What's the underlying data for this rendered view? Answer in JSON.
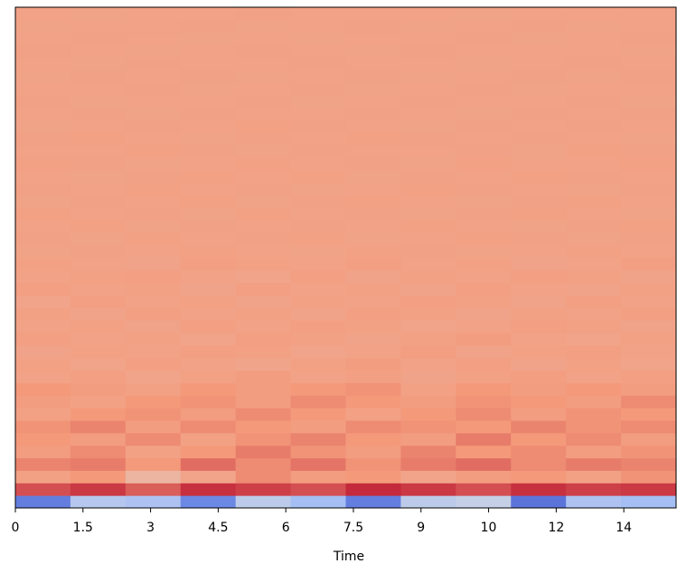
{
  "chart_data": {
    "type": "heatmap",
    "xlabel": "Time",
    "colormap": "coolwarm",
    "clim": [
      -200,
      200
    ],
    "xlim": [
      0,
      14.66
    ],
    "xticks": [
      0,
      1.5,
      3,
      4.5,
      6,
      7.5,
      9,
      {
        "value": 10.5,
        "label": "10"
      },
      12,
      {
        "value": 13.5,
        "label": "14"
      }
    ],
    "z": [
      [
        -150,
        -50,
        -60,
        -140,
        -40,
        -70,
        -150,
        -40,
        -30,
        -160,
        -60,
        -70
      ],
      [
        150,
        165,
        140,
        170,
        160,
        150,
        175,
        165,
        150,
        170,
        160,
        165
      ],
      [
        90,
        100,
        60,
        85,
        110,
        95,
        100,
        85,
        95,
        100,
        90,
        105
      ],
      [
        115,
        120,
        100,
        130,
        110,
        125,
        105,
        120,
        130,
        110,
        120,
        115
      ],
      [
        95,
        110,
        90,
        100,
        120,
        105,
        95,
        115,
        100,
        110,
        95,
        105
      ],
      [
        100,
        95,
        110,
        90,
        105,
        115,
        100,
        95,
        120,
        100,
        110,
        95
      ],
      [
        105,
        115,
        95,
        110,
        100,
        95,
        110,
        105,
        100,
        115,
        105,
        110
      ],
      [
        90,
        100,
        105,
        95,
        110,
        100,
        90,
        100,
        110,
        95,
        105,
        100
      ],
      [
        95,
        90,
        100,
        105,
        95,
        110,
        100,
        95,
        105,
        100,
        95,
        110
      ],
      [
        100,
        95,
        90,
        100,
        95,
        100,
        105,
        90,
        100,
        95,
        100,
        95
      ],
      [
        88,
        92,
        85,
        90,
        95,
        88,
        92,
        86,
        90,
        94,
        88,
        92
      ],
      [
        90,
        85,
        92,
        88,
        84,
        90,
        95,
        88,
        92,
        86,
        90,
        85
      ],
      [
        86,
        90,
        88,
        92,
        90,
        85,
        88,
        94,
        86,
        90,
        92,
        88
      ],
      [
        92,
        88,
        90,
        85,
        92,
        90,
        86,
        90,
        95,
        88,
        85,
        90
      ],
      [
        88,
        90,
        86,
        92,
        88,
        92,
        90,
        85,
        88,
        92,
        90,
        86
      ],
      [
        90,
        86,
        92,
        88,
        90,
        86,
        92,
        90,
        86,
        90,
        88,
        92
      ],
      [
        85,
        92,
        88,
        90,
        86,
        90,
        88,
        92,
        90,
        86,
        92,
        88
      ],
      [
        92,
        88,
        90,
        86,
        92,
        88,
        90,
        86,
        92,
        88,
        86,
        90
      ],
      [
        88,
        90,
        92,
        88,
        85,
        92,
        86,
        90,
        88,
        92,
        90,
        86
      ],
      [
        90,
        88,
        86,
        92,
        90,
        88,
        92,
        88,
        90,
        86,
        88,
        92
      ],
      [
        87,
        89,
        88,
        90,
        88,
        87,
        90,
        89,
        87,
        88,
        90,
        88
      ],
      [
        89,
        87,
        90,
        88,
        89,
        90,
        87,
        88,
        90,
        89,
        87,
        89
      ],
      [
        88,
        90,
        87,
        89,
        88,
        89,
        88,
        90,
        88,
        87,
        89,
        90
      ],
      [
        90,
        88,
        89,
        87,
        90,
        88,
        89,
        87,
        89,
        90,
        88,
        87
      ],
      [
        87,
        89,
        88,
        90,
        87,
        89,
        90,
        88,
        87,
        89,
        90,
        88
      ],
      [
        89,
        88,
        90,
        88,
        89,
        87,
        88,
        90,
        89,
        88,
        87,
        89
      ],
      [
        88,
        87,
        89,
        90,
        88,
        90,
        87,
        89,
        88,
        90,
        89,
        88
      ],
      [
        90,
        89,
        87,
        88,
        90,
        88,
        89,
        87,
        90,
        88,
        88,
        90
      ],
      [
        88,
        88,
        90,
        89,
        87,
        89,
        88,
        88,
        89,
        87,
        90,
        89
      ],
      [
        89,
        90,
        88,
        87,
        89,
        88,
        90,
        89,
        88,
        89,
        88,
        87
      ],
      [
        87,
        88,
        89,
        88,
        90,
        89,
        88,
        87,
        89,
        88,
        89,
        88
      ],
      [
        88,
        89,
        87,
        89,
        88,
        88,
        89,
        88,
        87,
        89,
        88,
        89
      ],
      [
        89,
        87,
        88,
        88,
        89,
        87,
        88,
        89,
        88,
        88,
        89,
        87
      ],
      [
        88,
        88,
        89,
        87,
        88,
        89,
        87,
        88,
        89,
        87,
        88,
        88
      ],
      [
        87,
        89,
        88,
        89,
        87,
        88,
        89,
        87,
        88,
        89,
        87,
        89
      ],
      [
        88,
        87,
        89,
        88,
        88,
        89,
        88,
        88,
        87,
        88,
        89,
        88
      ],
      [
        89,
        88,
        87,
        88,
        89,
        88,
        87,
        89,
        88,
        88,
        88,
        87
      ],
      [
        88,
        89,
        88,
        87,
        88,
        87,
        88,
        88,
        89,
        87,
        88,
        89
      ],
      [
        87,
        88,
        88,
        89,
        87,
        88,
        89,
        87,
        88,
        89,
        87,
        88
      ],
      [
        88,
        87,
        88,
        88,
        89,
        88,
        88,
        88,
        87,
        88,
        88,
        88
      ]
    ]
  }
}
